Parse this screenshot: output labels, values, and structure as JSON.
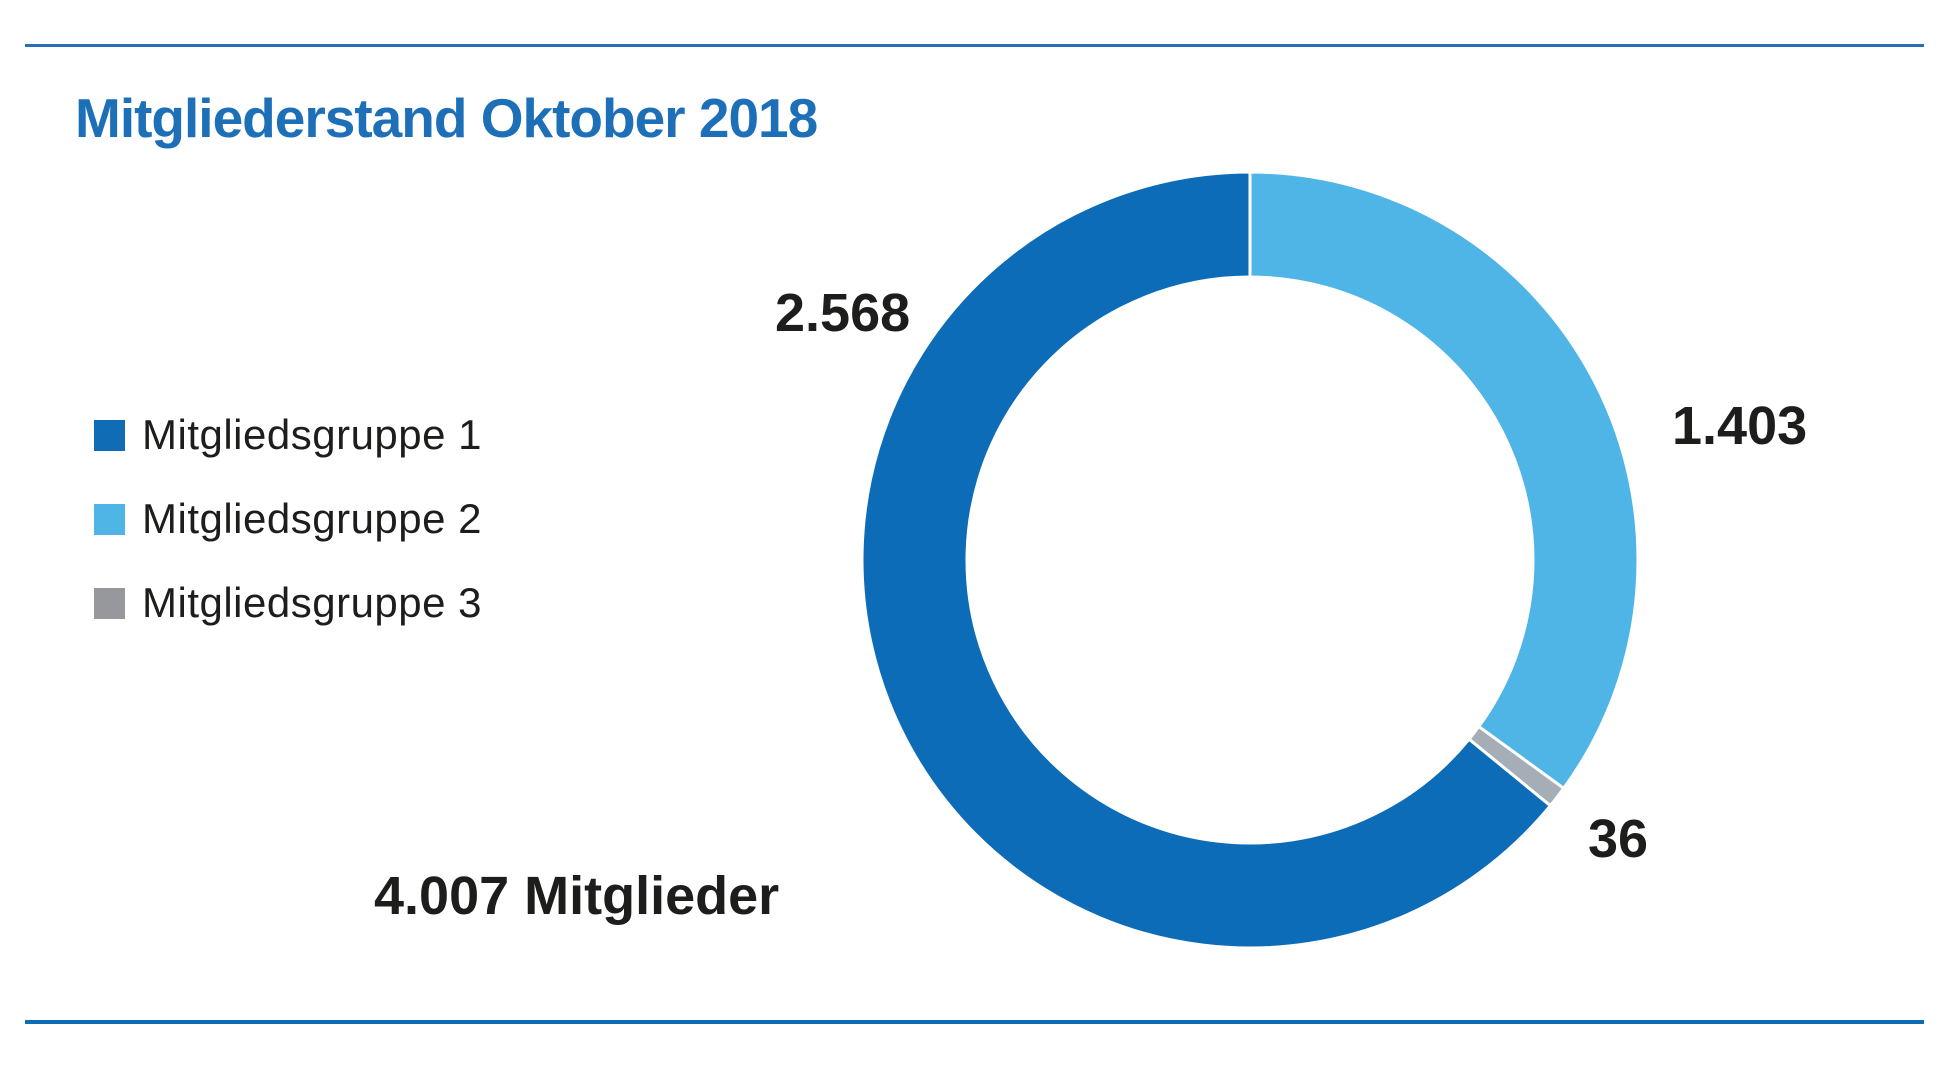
{
  "title": {
    "text": "Mitgliederstand Oktober 2018",
    "color": "#1d70b8"
  },
  "rules": {
    "top_color": "#2a6db8",
    "bottom_color": "#0d6cb3"
  },
  "legend": {
    "position": "left",
    "items": [
      {
        "label": "Mitgliedsgruppe 1",
        "color": "#0f6cb5"
      },
      {
        "label": "Mitgliedsgruppe 2",
        "color": "#4fb5e6"
      },
      {
        "label": "Mitgliedsgruppe 3",
        "color": "#97989b"
      }
    ]
  },
  "chart_data": {
    "type": "pie",
    "variant": "donut",
    "title": "Mitgliederstand Oktober 2018",
    "categories": [
      "Mitgliedsgruppe 1",
      "Mitgliedsgruppe 2",
      "Mitgliedsgruppe 3"
    ],
    "values": [
      2568,
      1403,
      36
    ],
    "value_labels": [
      "2.568",
      "1.403",
      "36"
    ],
    "colors": [
      "#0d6cb7",
      "#4fb5e6",
      "#a5aeb6"
    ],
    "total": 4007,
    "total_label": "4.007 Mitglieder",
    "legend_position": "left",
    "start_angle_deg_from_12_oclock": 0,
    "direction": "clockwise",
    "draw_order_clockwise_from_top": [
      1,
      2,
      0
    ],
    "donut_hole_ratio": 0.73,
    "separator_color": "#ffffff"
  }
}
